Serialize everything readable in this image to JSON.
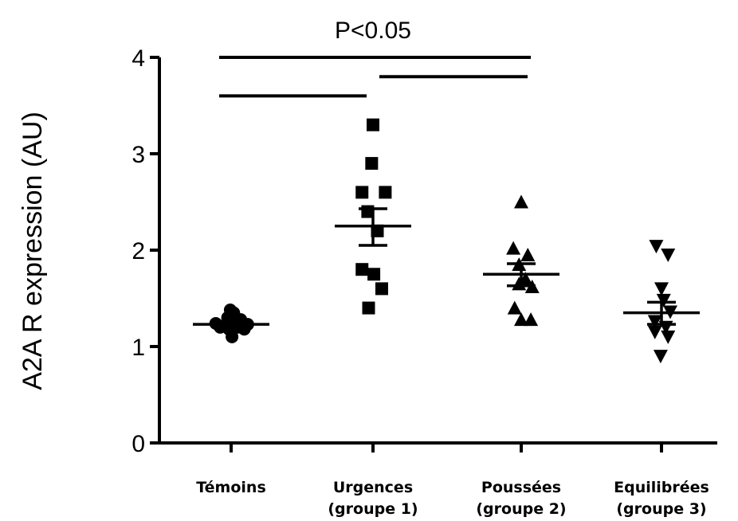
{
  "chart_data": {
    "type": "scatter",
    "ylabel": "A2A R expression (AU)",
    "ylim": [
      0,
      4
    ],
    "yticks": [
      0,
      1,
      2,
      3,
      4
    ],
    "categories": [
      {
        "line1": "Témoins",
        "line2": ""
      },
      {
        "line1": "Urgences",
        "line2": "(groupe 1)"
      },
      {
        "line1": "Poussées",
        "line2": "(groupe 2)"
      },
      {
        "line1": "Equilibrées",
        "line2": "(groupe 3)"
      }
    ],
    "series": [
      {
        "marker": "circle",
        "points": [
          [
            -0.35,
            1.24
          ],
          [
            -0.25,
            1.2
          ],
          [
            -0.15,
            1.22
          ],
          [
            -0.08,
            1.3
          ],
          [
            -0.02,
            1.38
          ],
          [
            0.02,
            1.1
          ],
          [
            0.06,
            1.35
          ],
          [
            0.1,
            1.26
          ],
          [
            0.15,
            1.2
          ],
          [
            0.22,
            1.28
          ],
          [
            0.3,
            1.18
          ],
          [
            0.38,
            1.23
          ],
          [
            -0.05,
            1.18
          ]
        ],
        "mean": 1.23,
        "sem_upper": 1.25,
        "sem_lower": 1.21
      },
      {
        "marker": "square",
        "points": [
          [
            0.0,
            3.3
          ],
          [
            -0.03,
            2.9
          ],
          [
            -0.25,
            2.6
          ],
          [
            0.28,
            2.6
          ],
          [
            -0.12,
            2.4
          ],
          [
            0.1,
            2.2
          ],
          [
            -0.25,
            1.8
          ],
          [
            0.02,
            1.75
          ],
          [
            0.2,
            1.6
          ],
          [
            -0.1,
            1.4
          ]
        ],
        "mean": 2.25,
        "sem_upper": 2.43,
        "sem_lower": 2.05
      },
      {
        "marker": "triangle-up",
        "points": [
          [
            0.0,
            2.5
          ],
          [
            -0.18,
            2.02
          ],
          [
            0.15,
            1.95
          ],
          [
            -0.05,
            1.85
          ],
          [
            0.1,
            1.7
          ],
          [
            -0.05,
            1.65
          ],
          [
            0.25,
            1.62
          ],
          [
            -0.15,
            1.4
          ],
          [
            0.0,
            1.28
          ],
          [
            0.22,
            1.28
          ]
        ],
        "mean": 1.75,
        "sem_upper": 1.86,
        "sem_lower": 1.63
      },
      {
        "marker": "triangle-down",
        "points": [
          [
            -0.12,
            2.04
          ],
          [
            0.15,
            1.95
          ],
          [
            0.0,
            1.6
          ],
          [
            0.05,
            1.48
          ],
          [
            0.2,
            1.36
          ],
          [
            -0.15,
            1.26
          ],
          [
            0.1,
            1.2
          ],
          [
            -0.15,
            1.15
          ],
          [
            0.15,
            1.1
          ],
          [
            -0.02,
            0.9
          ]
        ],
        "mean": 1.35,
        "sem_upper": 1.46,
        "sem_lower": 1.23
      }
    ],
    "significance": {
      "label": "P<0.05",
      "bars": [
        {
          "from": 0,
          "to": 2,
          "y": 4.0
        },
        {
          "from": 1,
          "to": 2,
          "y": 3.8
        },
        {
          "from": 0,
          "to": 1,
          "y": 3.6
        }
      ]
    }
  }
}
